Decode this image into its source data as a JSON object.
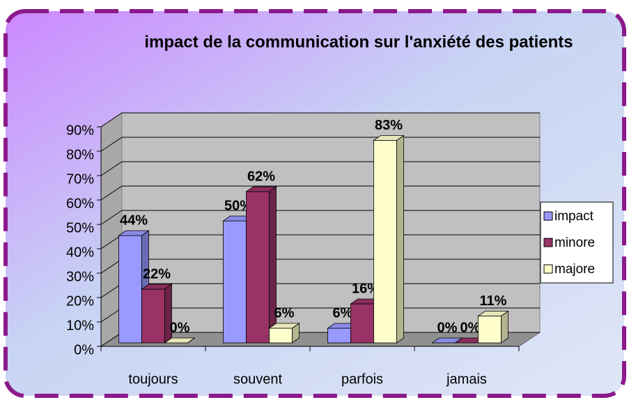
{
  "chart_data": {
    "type": "bar",
    "title": "impact de la communication sur l'anxiété des patients",
    "categories": [
      "toujours",
      "souvent",
      "parfois",
      "jamais"
    ],
    "series": [
      {
        "name": "impact",
        "color": "#9999ff",
        "values": [
          44,
          50,
          6,
          0
        ],
        "value_labels": [
          "44%",
          "50%",
          "6%",
          "0%"
        ]
      },
      {
        "name": "minore",
        "color": "#993366",
        "values": [
          22,
          62,
          16,
          0
        ],
        "value_labels": [
          "22%",
          "62%",
          "16%",
          "0%"
        ]
      },
      {
        "name": "majore",
        "color": "#ffffcc",
        "values": [
          0,
          6,
          83,
          11
        ],
        "value_labels": [
          "0%",
          "6%",
          "83%",
          "11%"
        ]
      }
    ],
    "ylim": [
      0,
      90
    ],
    "yticks": [
      {
        "value": 0,
        "label": "0%"
      },
      {
        "value": 10,
        "label": "10%"
      },
      {
        "value": 20,
        "label": "20%"
      },
      {
        "value": 30,
        "label": "30%"
      },
      {
        "value": 40,
        "label": "40%"
      },
      {
        "value": 50,
        "label": "50%"
      },
      {
        "value": 60,
        "label": "60%"
      },
      {
        "value": 70,
        "label": "70%"
      },
      {
        "value": 80,
        "label": "80%"
      },
      {
        "value": 90,
        "label": "90%"
      }
    ],
    "grid": true,
    "legend": "right"
  }
}
